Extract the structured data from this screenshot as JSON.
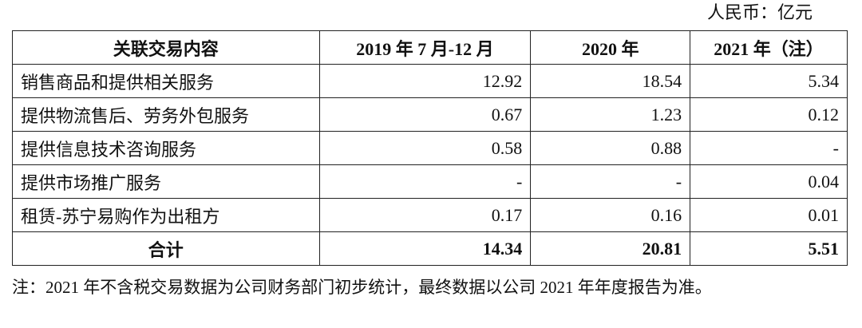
{
  "unit": "人民币：亿元",
  "table": {
    "header": [
      "关联交易内容",
      "2019 年 7 月-12 月",
      "2020 年",
      "2021 年（注）"
    ],
    "rows": [
      [
        "销售商品和提供相关服务",
        "12.92",
        "18.54",
        "5.34"
      ],
      [
        "提供物流售后、劳务外包服务",
        "0.67",
        "1.23",
        "0.12"
      ],
      [
        "提供信息技术咨询服务",
        "0.58",
        "0.88",
        "-"
      ],
      [
        "提供市场推广服务",
        "-",
        "-",
        "0.04"
      ],
      [
        "租赁-苏宁易购作为出租方",
        "0.17",
        "0.16",
        "0.01"
      ]
    ],
    "total": [
      "合计",
      "14.34",
      "20.81",
      "5.51"
    ]
  },
  "note": "注：2021 年不含税交易数据为公司财务部门初步统计，最终数据以公司 2021 年年度报告为准。"
}
